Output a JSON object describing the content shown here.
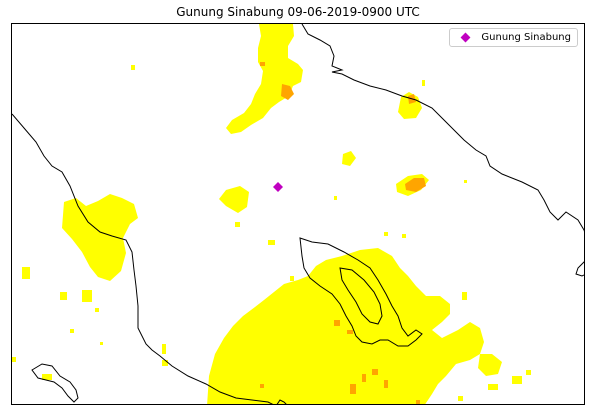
{
  "title": "Gunung Sinabung 09-06-2019-0900 UTC",
  "legend": {
    "label": "Gunung Sinabung",
    "marker_color": "#c000c0"
  },
  "colors": {
    "ash_low": "#ffff00",
    "ash_high": "#ffa500",
    "coastline": "#000000",
    "background": "#ffffff"
  },
  "marker": {
    "name": "Gunung Sinabung",
    "icon": "diamond-marker-icon"
  }
}
